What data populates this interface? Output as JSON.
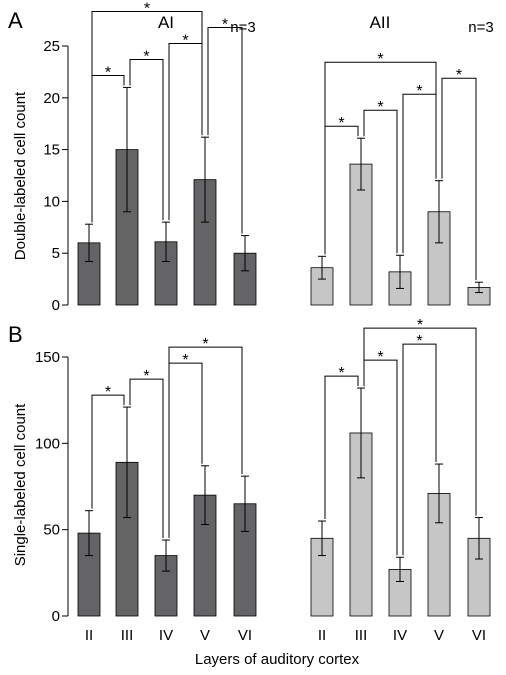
{
  "figure": {
    "xlabel": "Layers of auditory cortex",
    "categories": [
      "II",
      "III",
      "IV",
      "V",
      "VI"
    ],
    "colors": {
      "ai": "#646466",
      "aii": "#c6c6c6",
      "edge": "#000000"
    }
  },
  "chart_data": [
    {
      "type": "bar",
      "panel_letter": "A",
      "ylabel": "Double-labeled cell count",
      "ylim": [
        0,
        25
      ],
      "yticks": [
        0,
        5,
        10,
        15,
        20,
        25
      ],
      "categories": [
        "II",
        "III",
        "IV",
        "V",
        "VI"
      ],
      "series": [
        {
          "name": "AI",
          "n_label": "n=3",
          "values": [
            6.0,
            15.0,
            6.1,
            12.1,
            5.0
          ],
          "errors": [
            1.8,
            6.0,
            1.9,
            4.1,
            1.7
          ],
          "significance": [
            [
              0,
              1
            ],
            [
              1,
              2
            ],
            [
              0,
              3
            ],
            [
              2,
              3
            ],
            [
              3,
              4
            ]
          ]
        },
        {
          "name": "AII",
          "n_label": "n=3",
          "values": [
            3.6,
            13.6,
            3.2,
            9.0,
            1.7
          ],
          "errors": [
            1.1,
            2.5,
            1.6,
            3.0,
            0.5
          ],
          "significance": [
            [
              0,
              1
            ],
            [
              1,
              2
            ],
            [
              0,
              3
            ],
            [
              2,
              3
            ],
            [
              3,
              4
            ]
          ]
        }
      ],
      "annotation_symbol": "*"
    },
    {
      "type": "bar",
      "panel_letter": "B",
      "ylabel": "Single-labeled cell count",
      "ylim": [
        0,
        150
      ],
      "yticks": [
        0,
        50,
        100,
        150
      ],
      "categories": [
        "II",
        "III",
        "IV",
        "V",
        "VI"
      ],
      "series": [
        {
          "name": "AI",
          "values": [
            48,
            89,
            35,
            70,
            65
          ],
          "errors": [
            13,
            32,
            9,
            17,
            16
          ],
          "significance": [
            [
              0,
              1
            ],
            [
              1,
              2
            ],
            [
              2,
              3
            ],
            [
              2,
              4
            ]
          ]
        },
        {
          "name": "AII",
          "values": [
            45,
            106,
            27,
            71,
            45
          ],
          "errors": [
            10,
            26,
            7,
            17,
            12
          ],
          "significance": [
            [
              0,
              1
            ],
            [
              1,
              2
            ],
            [
              2,
              3
            ],
            [
              1,
              4
            ]
          ]
        }
      ],
      "annotation_symbol": "*"
    }
  ]
}
